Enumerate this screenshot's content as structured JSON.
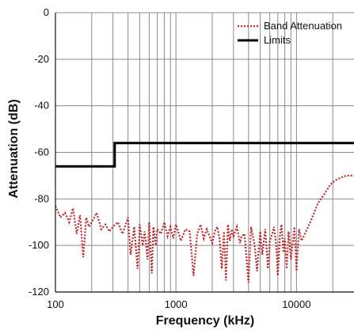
{
  "chart_data": {
    "type": "line",
    "xlabel": "Frequency (kHz)",
    "ylabel": "Attenuation (dB)",
    "x_scale": "log",
    "xlim": [
      100,
      30000
    ],
    "ylim": [
      -120,
      0
    ],
    "grid": true,
    "legend_position": "top-right",
    "x_ticks": [
      {
        "value": 100,
        "label": "100"
      },
      {
        "value": 1000,
        "label": "1000"
      },
      {
        "value": 10000,
        "label": "10000"
      }
    ],
    "y_ticks": [
      {
        "value": 0,
        "label": "0"
      },
      {
        "value": -20,
        "label": "-20"
      },
      {
        "value": -40,
        "label": "-40"
      },
      {
        "value": -60,
        "label": "-60"
      },
      {
        "value": -80,
        "label": "-80"
      },
      {
        "value": -100,
        "label": "-100"
      },
      {
        "value": -120,
        "label": "-120"
      }
    ],
    "series": [
      {
        "name": "Band Attenuation",
        "color": "#c0282d",
        "style": "dotted",
        "x": [
          100,
          110,
          120,
          130,
          140,
          150,
          160,
          170,
          180,
          190,
          200,
          220,
          240,
          260,
          280,
          300,
          330,
          360,
          400,
          420,
          450,
          480,
          500,
          530,
          550,
          580,
          600,
          630,
          650,
          680,
          700,
          750,
          800,
          850,
          900,
          950,
          1000,
          1100,
          1200,
          1300,
          1400,
          1500,
          1600,
          1700,
          1800,
          1900,
          2000,
          2100,
          2200,
          2300,
          2400,
          2500,
          2600,
          2700,
          2800,
          2900,
          3000,
          3200,
          3400,
          3500,
          3700,
          4000,
          4200,
          4500,
          4700,
          5000,
          5200,
          5500,
          5800,
          6000,
          6300,
          6500,
          6800,
          7000,
          7300,
          7500,
          7800,
          8000,
          8300,
          8600,
          9000,
          9300,
          9600,
          10000,
          10500,
          11000,
          12000,
          13000,
          14000,
          15000,
          17000,
          19000,
          21000,
          23000,
          26000,
          30000
        ],
        "values": [
          -83,
          -88,
          -86,
          -90,
          -84,
          -95,
          -87,
          -105,
          -88,
          -92,
          -90,
          -86,
          -93,
          -91,
          -94,
          -92,
          -90,
          -95,
          -88,
          -104,
          -92,
          -110,
          -91,
          -100,
          -94,
          -106,
          -90,
          -112,
          -92,
          -100,
          -93,
          -95,
          -90,
          -96,
          -92,
          -97,
          -91,
          -98,
          -93,
          -94,
          -113,
          -95,
          -91,
          -97,
          -93,
          -96,
          -99,
          -94,
          -92,
          -97,
          -110,
          -94,
          -115,
          -91,
          -98,
          -93,
          -96,
          -92,
          -99,
          -96,
          -95,
          -116,
          -92,
          -100,
          -111,
          -94,
          -104,
          -93,
          -110,
          -98,
          -95,
          -92,
          -100,
          -113,
          -95,
          -91,
          -103,
          -97,
          -110,
          -94,
          -106,
          -99,
          -92,
          -111,
          -93,
          -98,
          -94,
          -90,
          -86,
          -82,
          -78,
          -74,
          -72,
          -71,
          -70,
          -70
        ]
      },
      {
        "name": "Limits",
        "color": "#000000",
        "style": "solid",
        "x": [
          100,
          310,
          310,
          30000
        ],
        "values": [
          -66,
          -66,
          -56,
          -56
        ]
      }
    ]
  }
}
